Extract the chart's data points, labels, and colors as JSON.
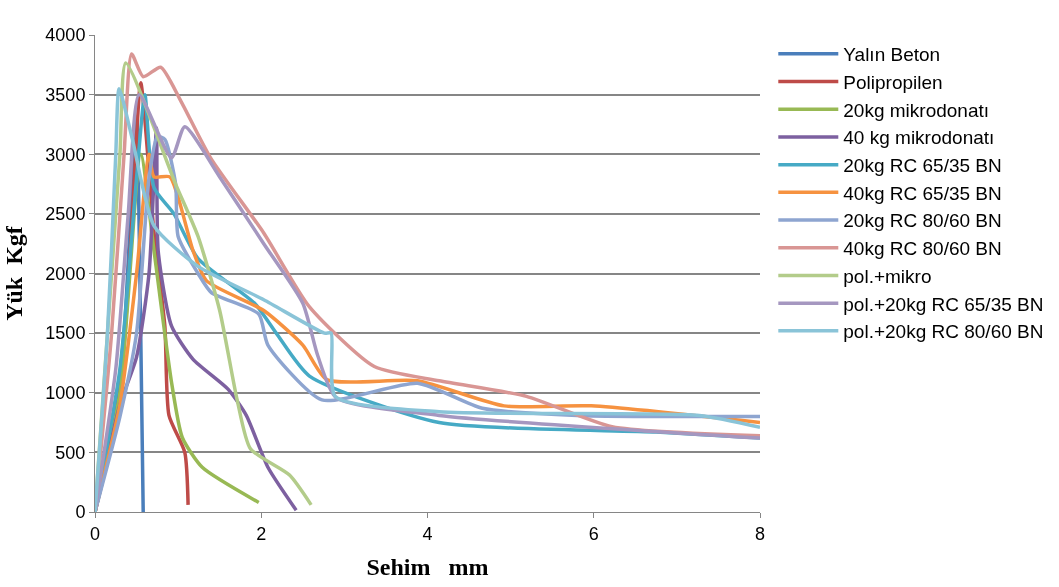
{
  "chart_data": {
    "type": "line",
    "xlabel": "Sehim   mm",
    "ylabel": "Yük  Kgf",
    "xlim": [
      0,
      8
    ],
    "xticks": [
      0,
      2,
      4,
      6,
      8
    ],
    "ylim": [
      0,
      4000
    ],
    "yticks": [
      0,
      500,
      1000,
      1500,
      2000,
      2500,
      3000,
      3500,
      4000
    ],
    "grid": "y",
    "legend": "right",
    "marker": "none",
    "line_style": "solid",
    "series": [
      {
        "name": "Yalın Beton",
        "color": "#4a7ebb",
        "x": [
          0,
          0.2,
          0.35,
          0.45,
          0.5,
          0.55,
          0.58
        ],
        "values": [
          0,
          600,
          1500,
          2800,
          3300,
          1500,
          0
        ]
      },
      {
        "name": "Polipropilen",
        "color": "#be4b48",
        "x": [
          0,
          0.3,
          0.45,
          0.55,
          0.71,
          0.84,
          0.89,
          1.08,
          1.12
        ],
        "values": [
          0,
          1000,
          2500,
          3600,
          2340,
          1560,
          810,
          500,
          60
        ]
      },
      {
        "name": "20kg mikrodonatı",
        "color": "#98b954",
        "x": [
          0,
          0.3,
          0.55,
          0.71,
          0.92,
          1.05,
          1.29,
          1.97
        ],
        "values": [
          0,
          1000,
          3000,
          2190,
          1090,
          625,
          375,
          80
        ]
      },
      {
        "name": "40 kg mikrodonatı",
        "color": "#7d60a0",
        "x": [
          0,
          0.3,
          0.5,
          0.65,
          0.74,
          0.76,
          0.92,
          1.18,
          1.6,
          1.82,
          2.08,
          2.42
        ],
        "values": [
          0,
          900,
          1300,
          2000,
          3220,
          2190,
          1560,
          1280,
          1030,
          810,
          375,
          15
        ]
      },
      {
        "name": "20kg RC 65/35 BN",
        "color": "#46aac5",
        "x": [
          0,
          0.3,
          0.5,
          0.6,
          0.71,
          0.95,
          1.24,
          1.92,
          2.18,
          2.58,
          4.14,
          6.75,
          8
        ],
        "values": [
          0,
          1200,
          2800,
          3500,
          2720,
          2500,
          2125,
          1750,
          1500,
          1140,
          750,
          670,
          620
        ]
      },
      {
        "name": "40kg RC 65/35 BN",
        "color": "#f69240",
        "x": [
          0,
          0.3,
          0.5,
          0.65,
          0.71,
          0.9,
          1.18,
          1.34,
          2.03,
          2.5,
          2.79,
          3.88,
          4.92,
          5.97,
          8
        ],
        "values": [
          0,
          900,
          2000,
          3000,
          2810,
          2810,
          2190,
          1940,
          1690,
          1400,
          1110,
          1100,
          890,
          890,
          750
        ]
      },
      {
        "name": "20kg RC 80/60 BN",
        "color": "#8ea5d0",
        "x": [
          0,
          0.3,
          0.5,
          0.65,
          0.75,
          0.84,
          0.97,
          1.0,
          1.24,
          1.4,
          1.97,
          2.08,
          2.73,
          3.88,
          4.66,
          5.8,
          8
        ],
        "values": [
          0,
          800,
          1500,
          2800,
          3150,
          3125,
          2750,
          2310,
          2000,
          1840,
          1660,
          1400,
          940,
          1080,
          870,
          810,
          800
        ]
      },
      {
        "name": "40kg RC 80/60 BN",
        "color": "#d99694",
        "x": [
          0,
          0.2,
          0.35,
          0.44,
          0.58,
          0.79,
          1.03,
          1.39,
          2.03,
          2.58,
          3.36,
          4.14,
          5.19,
          6.22,
          8
        ],
        "values": [
          0,
          1500,
          3000,
          3840,
          3650,
          3730,
          3450,
          2970,
          2340,
          1720,
          1220,
          1100,
          970,
          715,
          640
        ]
      },
      {
        "name": "pol.+mikro",
        "color": "#b3cc8a",
        "x": [
          0,
          0.15,
          0.3,
          0.37,
          0.97,
          1.24,
          1.5,
          1.71,
          1.87,
          2.34,
          2.6
        ],
        "values": [
          0,
          1500,
          3000,
          3765,
          2750,
          2310,
          1690,
          940,
          530,
          310,
          60
        ]
      },
      {
        "name": "pol.+20kg RC 65/35 BN",
        "color": "#a597c0",
        "x": [
          0,
          0.25,
          0.4,
          0.53,
          0.92,
          1.08,
          1.5,
          2.03,
          2.5,
          2.68,
          2.9,
          4.14,
          8
        ],
        "values": [
          0,
          1200,
          2500,
          3500,
          2970,
          3230,
          2810,
          2250,
          1750,
          1310,
          960,
          810,
          620
        ]
      },
      {
        "name": "pol.+20kg RC 80/60 BN",
        "color": "#8ac4d8",
        "x": [
          0,
          0.15,
          0.25,
          0.29,
          0.45,
          0.71,
          1.24,
          2.03,
          2.76,
          2.84,
          2.89,
          4.14,
          7.27,
          8
        ],
        "values": [
          0,
          1500,
          3000,
          3550,
          3125,
          2400,
          2060,
          1780,
          1500,
          1500,
          970,
          840,
          810,
          710
        ]
      }
    ]
  }
}
